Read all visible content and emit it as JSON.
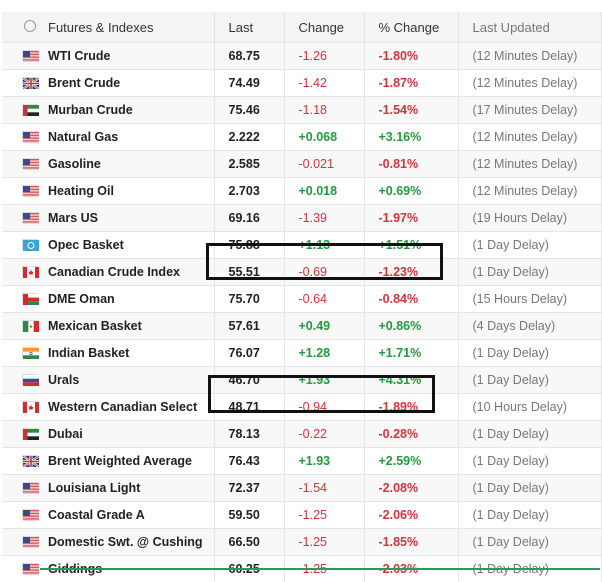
{
  "header": {
    "name": "Futures & Indexes",
    "last": "Last",
    "change": "Change",
    "pct": "% Change",
    "updated": "Last Updated"
  },
  "rows": [
    {
      "name": "WTI Crude",
      "flag": "us",
      "last": "68.75",
      "change": "-1.26",
      "pct": "-1.80%",
      "updated": "(12 Minutes Delay)",
      "dir": "neg"
    },
    {
      "name": "Brent Crude",
      "flag": "uk",
      "last": "74.49",
      "change": "-1.42",
      "pct": "-1.87%",
      "updated": "(12 Minutes Delay)",
      "dir": "neg"
    },
    {
      "name": "Murban Crude",
      "flag": "ae",
      "last": "75.46",
      "change": "-1.18",
      "pct": "-1.54%",
      "updated": "(17 Minutes Delay)",
      "dir": "neg"
    },
    {
      "name": "Natural Gas",
      "flag": "us",
      "last": "2.222",
      "change": "+0.068",
      "pct": "+3.16%",
      "updated": "(12 Minutes Delay)",
      "dir": "pos"
    },
    {
      "name": "Gasoline",
      "flag": "us",
      "last": "2.585",
      "change": "-0.021",
      "pct": "-0.81%",
      "updated": "(12 Minutes Delay)",
      "dir": "neg"
    },
    {
      "name": "Heating Oil",
      "flag": "us",
      "last": "2.703",
      "change": "+0.018",
      "pct": "+0.69%",
      "updated": "(12 Minutes Delay)",
      "dir": "pos"
    },
    {
      "name": "Mars US",
      "flag": "us",
      "last": "69.16",
      "change": "-1.39",
      "pct": "-1.97%",
      "updated": "(19 Hours Delay)",
      "dir": "neg"
    },
    {
      "name": "Opec Basket",
      "flag": "opec",
      "last": "75.88",
      "change": "+1.13",
      "pct": "+1.51%",
      "updated": "(1 Day Delay)",
      "dir": "pos"
    },
    {
      "name": "Canadian Crude Index",
      "flag": "ca",
      "last": "55.51",
      "change": "-0.69",
      "pct": "-1.23%",
      "updated": "(1 Day Delay)",
      "dir": "neg"
    },
    {
      "name": "DME Oman",
      "flag": "om",
      "last": "75.70",
      "change": "-0.64",
      "pct": "-0.84%",
      "updated": "(15 Hours Delay)",
      "dir": "neg"
    },
    {
      "name": "Mexican Basket",
      "flag": "mx",
      "last": "57.61",
      "change": "+0.49",
      "pct": "+0.86%",
      "updated": "(4 Days Delay)",
      "dir": "pos"
    },
    {
      "name": "Indian Basket",
      "flag": "in",
      "last": "76.07",
      "change": "+1.28",
      "pct": "+1.71%",
      "updated": "(1 Day Delay)",
      "dir": "pos"
    },
    {
      "name": "Urals",
      "flag": "ru",
      "last": "46.70",
      "change": "+1.93",
      "pct": "+4.31%",
      "updated": "(1 Day Delay)",
      "dir": "pos"
    },
    {
      "name": "Western Canadian Select",
      "flag": "ca",
      "last": "48.71",
      "change": "-0.94",
      "pct": "-1.89%",
      "updated": "(10 Hours Delay)",
      "dir": "neg"
    },
    {
      "name": "Dubai",
      "flag": "ae",
      "last": "78.13",
      "change": "-0.22",
      "pct": "-0.28%",
      "updated": "(1 Day Delay)",
      "dir": "neg"
    },
    {
      "name": "Brent Weighted Average",
      "flag": "uk",
      "last": "76.43",
      "change": "+1.93",
      "pct": "+2.59%",
      "updated": "(1 Day Delay)",
      "dir": "pos"
    },
    {
      "name": "Louisiana Light",
      "flag": "us",
      "last": "72.37",
      "change": "-1.54",
      "pct": "-2.08%",
      "updated": "(1 Day Delay)",
      "dir": "neg"
    },
    {
      "name": "Coastal Grade A",
      "flag": "us",
      "last": "59.50",
      "change": "-1.25",
      "pct": "-2.06%",
      "updated": "(1 Day Delay)",
      "dir": "neg"
    },
    {
      "name": "Domestic Swt. @ Cushing",
      "flag": "us",
      "last": "66.50",
      "change": "-1.25",
      "pct": "-1.85%",
      "updated": "(1 Day Delay)",
      "dir": "neg"
    },
    {
      "name": "Giddings",
      "flag": "us",
      "last": "60.25",
      "change": "-1.25",
      "pct": "-2.03%",
      "updated": "(1 Day Delay)",
      "dir": "neg"
    }
  ],
  "colors": {
    "negative": "#d4353b",
    "positive": "#1f9d3a",
    "highlight": "#111111"
  }
}
